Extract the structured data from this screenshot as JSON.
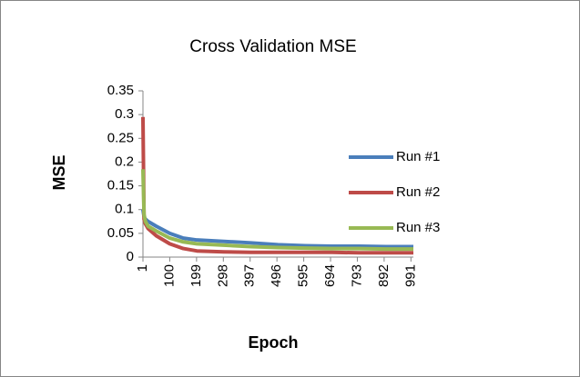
{
  "chart_data": {
    "type": "line",
    "title": "Cross Validation MSE",
    "x_label": "Epoch",
    "y_label": "MSE",
    "x": [
      1,
      5,
      10,
      20,
      50,
      100,
      150,
      200,
      300,
      400,
      500,
      600,
      700,
      800,
      900,
      1000
    ],
    "series": [
      {
        "name": "Run #1",
        "color": "#4a7ebb",
        "values": [
          0.1,
          0.085,
          0.08,
          0.075,
          0.065,
          0.05,
          0.04,
          0.036,
          0.033,
          0.03,
          0.026,
          0.024,
          0.023,
          0.023,
          0.022,
          0.022
        ]
      },
      {
        "name": "Run #2",
        "color": "#be4b48",
        "values": [
          0.295,
          0.08,
          0.07,
          0.06,
          0.045,
          0.028,
          0.018,
          0.013,
          0.011,
          0.01,
          0.01,
          0.01,
          0.01,
          0.009,
          0.009,
          0.009
        ]
      },
      {
        "name": "Run #3",
        "color": "#98b954",
        "values": [
          0.185,
          0.09,
          0.075,
          0.065,
          0.055,
          0.04,
          0.032,
          0.028,
          0.025,
          0.022,
          0.02,
          0.019,
          0.018,
          0.018,
          0.017,
          0.017
        ]
      }
    ],
    "xlim": [
      1,
      1000
    ],
    "xticks": [
      1,
      100,
      199,
      298,
      397,
      496,
      595,
      694,
      793,
      892,
      991
    ],
    "ylim": [
      0,
      0.35
    ],
    "yticks": [
      0,
      0.05,
      0.1,
      0.15,
      0.2,
      0.25,
      0.3,
      0.35
    ],
    "grid": false,
    "legend": "right"
  }
}
